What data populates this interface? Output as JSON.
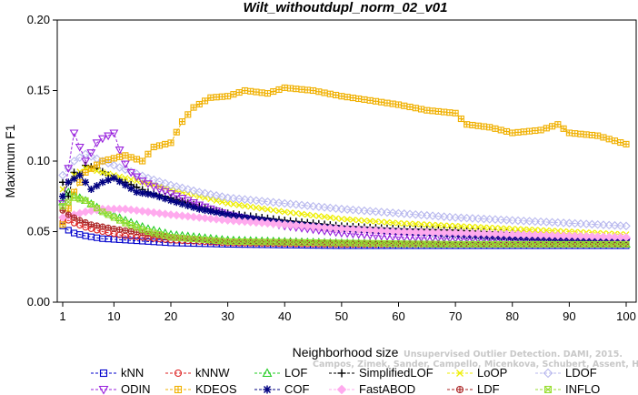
{
  "chart_data": {
    "type": "line",
    "title": "Wilt_withoutdupl_norm_02_v01",
    "xlabel": "Neighborhood size",
    "ylabel": "Maximum F1",
    "xlim": [
      1,
      100
    ],
    "ylim": [
      0,
      0.2
    ],
    "x_ticks": [
      "1",
      "10",
      "20",
      "30",
      "40",
      "50",
      "60",
      "70",
      "80",
      "90",
      "100"
    ],
    "y_ticks": [
      "0.00",
      "0.05",
      "0.10",
      "0.15",
      "0.20"
    ],
    "legend_position": "bottom",
    "watermark": [
      "Unsupervised Outlier Detection. DAMI, 2015.",
      "Campos, Zimek, Sander, Campello, Micenkova, Schubert, Assent, Houle"
    ],
    "series": [
      {
        "name": "kNN",
        "color": "#0000cc",
        "marker": "square",
        "anchors": [
          [
            1,
            0.054
          ],
          [
            2,
            0.051
          ],
          [
            3,
            0.049
          ],
          [
            5,
            0.047
          ],
          [
            8,
            0.045
          ],
          [
            12,
            0.044
          ],
          [
            20,
            0.042
          ],
          [
            30,
            0.041
          ],
          [
            50,
            0.04
          ],
          [
            70,
            0.04
          ],
          [
            100,
            0.04
          ]
        ]
      },
      {
        "name": "kNNW",
        "color": "#dd2222",
        "marker": "circle",
        "anchors": [
          [
            1,
            0.057
          ],
          [
            2,
            0.058
          ],
          [
            3,
            0.056
          ],
          [
            5,
            0.053
          ],
          [
            8,
            0.05
          ],
          [
            12,
            0.047
          ],
          [
            20,
            0.044
          ],
          [
            30,
            0.042
          ],
          [
            50,
            0.041
          ],
          [
            70,
            0.041
          ],
          [
            100,
            0.041
          ]
        ]
      },
      {
        "name": "LOF",
        "color": "#22cc22",
        "marker": "triangle",
        "anchors": [
          [
            1,
            0.071
          ],
          [
            2,
            0.078
          ],
          [
            3,
            0.076
          ],
          [
            5,
            0.072
          ],
          [
            8,
            0.065
          ],
          [
            12,
            0.058
          ],
          [
            16,
            0.052
          ],
          [
            20,
            0.048
          ],
          [
            30,
            0.044
          ],
          [
            50,
            0.042
          ],
          [
            70,
            0.041
          ],
          [
            100,
            0.041
          ]
        ]
      },
      {
        "name": "SimplifiedLOF",
        "color": "#000000",
        "marker": "plus",
        "anchors": [
          [
            1,
            0.085
          ],
          [
            2,
            0.075
          ],
          [
            3,
            0.092
          ],
          [
            4,
            0.09
          ],
          [
            5,
            0.097
          ],
          [
            7,
            0.095
          ],
          [
            9,
            0.09
          ],
          [
            12,
            0.085
          ],
          [
            16,
            0.078
          ],
          [
            20,
            0.074
          ],
          [
            25,
            0.068
          ],
          [
            30,
            0.063
          ],
          [
            40,
            0.058
          ],
          [
            50,
            0.054
          ],
          [
            60,
            0.052
          ],
          [
            70,
            0.051
          ],
          [
            80,
            0.049
          ],
          [
            90,
            0.047
          ],
          [
            100,
            0.046
          ]
        ]
      },
      {
        "name": "LoOP",
        "color": "#eeee00",
        "marker": "x",
        "anchors": [
          [
            1,
            0.08
          ],
          [
            3,
            0.09
          ],
          [
            5,
            0.095
          ],
          [
            8,
            0.092
          ],
          [
            12,
            0.088
          ],
          [
            16,
            0.084
          ],
          [
            20,
            0.08
          ],
          [
            25,
            0.075
          ],
          [
            30,
            0.07
          ],
          [
            40,
            0.064
          ],
          [
            50,
            0.059
          ],
          [
            60,
            0.056
          ],
          [
            70,
            0.054
          ],
          [
            80,
            0.052
          ],
          [
            90,
            0.05
          ],
          [
            100,
            0.048
          ]
        ]
      },
      {
        "name": "LDOF",
        "color": "#b8b8ee",
        "marker": "diamond",
        "anchors": [
          [
            1,
            0.09
          ],
          [
            3,
            0.1
          ],
          [
            5,
            0.105
          ],
          [
            8,
            0.1
          ],
          [
            12,
            0.094
          ],
          [
            16,
            0.088
          ],
          [
            20,
            0.083
          ],
          [
            25,
            0.078
          ],
          [
            30,
            0.074
          ],
          [
            40,
            0.07
          ],
          [
            50,
            0.066
          ],
          [
            60,
            0.063
          ],
          [
            70,
            0.06
          ],
          [
            80,
            0.058
          ],
          [
            90,
            0.056
          ],
          [
            100,
            0.054
          ]
        ]
      },
      {
        "name": "ODIN",
        "color": "#9922dd",
        "marker": "triangle-down",
        "anchors": [
          [
            1,
            0.07
          ],
          [
            2,
            0.095
          ],
          [
            3,
            0.12
          ],
          [
            4,
            0.11
          ],
          [
            5,
            0.1
          ],
          [
            6,
            0.106
          ],
          [
            7,
            0.113
          ],
          [
            8,
            0.116
          ],
          [
            9,
            0.118
          ],
          [
            10,
            0.12
          ],
          [
            11,
            0.108
          ],
          [
            12,
            0.098
          ],
          [
            13,
            0.092
          ],
          [
            15,
            0.086
          ],
          [
            18,
            0.08
          ],
          [
            20,
            0.077
          ],
          [
            25,
            0.069
          ],
          [
            30,
            0.062
          ],
          [
            40,
            0.054
          ],
          [
            50,
            0.049
          ],
          [
            60,
            0.046
          ],
          [
            70,
            0.045
          ],
          [
            80,
            0.044
          ],
          [
            90,
            0.044
          ],
          [
            100,
            0.043
          ]
        ]
      },
      {
        "name": "KDEOS",
        "color": "#f0b000",
        "marker": "crossbox",
        "anchors": [
          [
            1,
            0.055
          ],
          [
            3,
            0.078
          ],
          [
            5,
            0.092
          ],
          [
            8,
            0.1
          ],
          [
            12,
            0.104
          ],
          [
            15,
            0.1
          ],
          [
            17,
            0.11
          ],
          [
            20,
            0.113
          ],
          [
            22,
            0.128
          ],
          [
            24,
            0.138
          ],
          [
            27,
            0.145
          ],
          [
            30,
            0.146
          ],
          [
            33,
            0.15
          ],
          [
            37,
            0.148
          ],
          [
            40,
            0.152
          ],
          [
            45,
            0.15
          ],
          [
            50,
            0.146
          ],
          [
            55,
            0.143
          ],
          [
            60,
            0.14
          ],
          [
            65,
            0.136
          ],
          [
            70,
            0.134
          ],
          [
            72,
            0.126
          ],
          [
            76,
            0.124
          ],
          [
            80,
            0.12
          ],
          [
            85,
            0.122
          ],
          [
            88,
            0.126
          ],
          [
            90,
            0.12
          ],
          [
            95,
            0.118
          ],
          [
            100,
            0.112
          ]
        ]
      },
      {
        "name": "COF",
        "color": "#000080",
        "marker": "asterisk",
        "anchors": [
          [
            1,
            0.075
          ],
          [
            2,
            0.085
          ],
          [
            4,
            0.09
          ],
          [
            6,
            0.08
          ],
          [
            8,
            0.085
          ],
          [
            10,
            0.088
          ],
          [
            12,
            0.083
          ],
          [
            14,
            0.078
          ],
          [
            17,
            0.076
          ],
          [
            20,
            0.072
          ],
          [
            25,
            0.066
          ],
          [
            30,
            0.062
          ],
          [
            40,
            0.056
          ],
          [
            50,
            0.052
          ],
          [
            60,
            0.05
          ],
          [
            70,
            0.048
          ],
          [
            80,
            0.046
          ],
          [
            90,
            0.045
          ],
          [
            100,
            0.044
          ]
        ]
      },
      {
        "name": "FastABOD",
        "color": "#ffaaee",
        "marker": "diamond-filled",
        "anchors": [
          [
            1,
            0.06
          ],
          [
            3,
            0.062
          ],
          [
            5,
            0.064
          ],
          [
            8,
            0.066
          ],
          [
            12,
            0.066
          ],
          [
            16,
            0.064
          ],
          [
            20,
            0.062
          ],
          [
            25,
            0.06
          ],
          [
            30,
            0.058
          ],
          [
            40,
            0.055
          ],
          [
            50,
            0.052
          ],
          [
            60,
            0.05
          ],
          [
            70,
            0.049
          ],
          [
            80,
            0.048
          ],
          [
            90,
            0.047
          ],
          [
            100,
            0.046
          ]
        ]
      },
      {
        "name": "LDF",
        "color": "#aa2222",
        "marker": "circleplus",
        "anchors": [
          [
            1,
            0.065
          ],
          [
            2,
            0.062
          ],
          [
            4,
            0.058
          ],
          [
            6,
            0.055
          ],
          [
            10,
            0.052
          ],
          [
            15,
            0.049
          ],
          [
            20,
            0.046
          ],
          [
            30,
            0.043
          ],
          [
            50,
            0.042
          ],
          [
            70,
            0.041
          ],
          [
            100,
            0.041
          ]
        ]
      },
      {
        "name": "INFLO",
        "color": "#99dd33",
        "marker": "boxx",
        "anchors": [
          [
            1,
            0.068
          ],
          [
            3,
            0.074
          ],
          [
            5,
            0.072
          ],
          [
            8,
            0.064
          ],
          [
            12,
            0.056
          ],
          [
            16,
            0.05
          ],
          [
            20,
            0.046
          ],
          [
            30,
            0.043
          ],
          [
            50,
            0.042
          ],
          [
            70,
            0.041
          ],
          [
            100,
            0.041
          ]
        ]
      }
    ]
  }
}
